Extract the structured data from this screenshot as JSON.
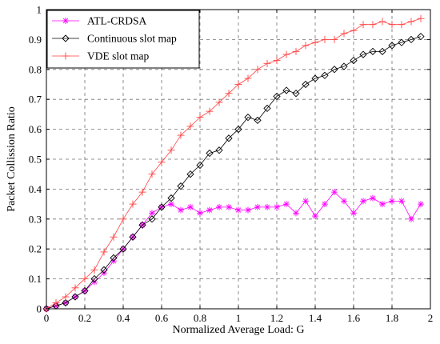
{
  "chart_data": {
    "type": "line",
    "xlabel": "Normalized Average Load: G",
    "ylabel": "Packet Collission Ratio",
    "xlim": [
      0,
      2
    ],
    "ylim": [
      0,
      1
    ],
    "x_ticks": [
      "0",
      "0.2",
      "0.4",
      "0.6",
      "0.8",
      "1",
      "1.2",
      "1.4",
      "1.6",
      "1.8",
      "2"
    ],
    "y_ticks": [
      "0",
      "0.1",
      "0.2",
      "0.3",
      "0.4",
      "0.5",
      "0.6",
      "0.7",
      "0.8",
      "0.9",
      "1"
    ],
    "grid": true,
    "legend_position": "top-left",
    "series": [
      {
        "name": "ATL-CRDSA",
        "color": "#ff00ff",
        "marker": "asterisk",
        "x": [
          0.0,
          0.05,
          0.1,
          0.15,
          0.2,
          0.25,
          0.3,
          0.35,
          0.4,
          0.45,
          0.5,
          0.55,
          0.6,
          0.65,
          0.7,
          0.75,
          0.8,
          0.85,
          0.9,
          0.95,
          1.0,
          1.05,
          1.1,
          1.15,
          1.2,
          1.25,
          1.3,
          1.35,
          1.4,
          1.45,
          1.5,
          1.55,
          1.6,
          1.65,
          1.7,
          1.75,
          1.8,
          1.85,
          1.9,
          1.95
        ],
        "y": [
          0.0,
          0.01,
          0.02,
          0.04,
          0.06,
          0.09,
          0.12,
          0.16,
          0.2,
          0.24,
          0.28,
          0.32,
          0.34,
          0.35,
          0.33,
          0.34,
          0.32,
          0.33,
          0.34,
          0.34,
          0.33,
          0.33,
          0.34,
          0.34,
          0.34,
          0.35,
          0.32,
          0.36,
          0.31,
          0.35,
          0.39,
          0.36,
          0.32,
          0.36,
          0.37,
          0.35,
          0.36,
          0.36,
          0.3,
          0.35
        ]
      },
      {
        "name": "Continuous slot map",
        "color": "#000000",
        "marker": "diamond",
        "x": [
          0.0,
          0.05,
          0.1,
          0.15,
          0.2,
          0.25,
          0.3,
          0.35,
          0.4,
          0.45,
          0.5,
          0.55,
          0.6,
          0.65,
          0.7,
          0.75,
          0.8,
          0.85,
          0.9,
          0.95,
          1.0,
          1.05,
          1.1,
          1.15,
          1.2,
          1.25,
          1.3,
          1.35,
          1.4,
          1.45,
          1.5,
          1.55,
          1.6,
          1.65,
          1.7,
          1.75,
          1.8,
          1.85,
          1.9,
          1.95
        ],
        "y": [
          0.0,
          0.01,
          0.02,
          0.04,
          0.06,
          0.1,
          0.13,
          0.17,
          0.2,
          0.24,
          0.28,
          0.3,
          0.34,
          0.37,
          0.41,
          0.45,
          0.48,
          0.52,
          0.53,
          0.57,
          0.6,
          0.64,
          0.63,
          0.67,
          0.71,
          0.73,
          0.72,
          0.75,
          0.77,
          0.78,
          0.8,
          0.81,
          0.83,
          0.85,
          0.86,
          0.86,
          0.88,
          0.89,
          0.9,
          0.91
        ]
      },
      {
        "name": "VDE slot map",
        "color": "#ff4444",
        "marker": "plus",
        "x": [
          0.0,
          0.05,
          0.1,
          0.15,
          0.2,
          0.25,
          0.3,
          0.35,
          0.4,
          0.45,
          0.5,
          0.55,
          0.6,
          0.65,
          0.7,
          0.75,
          0.8,
          0.85,
          0.9,
          0.95,
          1.0,
          1.05,
          1.1,
          1.15,
          1.2,
          1.25,
          1.3,
          1.35,
          1.4,
          1.45,
          1.5,
          1.55,
          1.6,
          1.65,
          1.7,
          1.75,
          1.8,
          1.85,
          1.9,
          1.95
        ],
        "y": [
          0.0,
          0.02,
          0.04,
          0.07,
          0.1,
          0.13,
          0.19,
          0.24,
          0.3,
          0.35,
          0.39,
          0.45,
          0.49,
          0.53,
          0.58,
          0.61,
          0.64,
          0.66,
          0.69,
          0.72,
          0.75,
          0.77,
          0.8,
          0.82,
          0.83,
          0.85,
          0.86,
          0.88,
          0.89,
          0.9,
          0.9,
          0.92,
          0.93,
          0.95,
          0.95,
          0.96,
          0.95,
          0.95,
          0.96,
          0.97
        ]
      }
    ]
  }
}
